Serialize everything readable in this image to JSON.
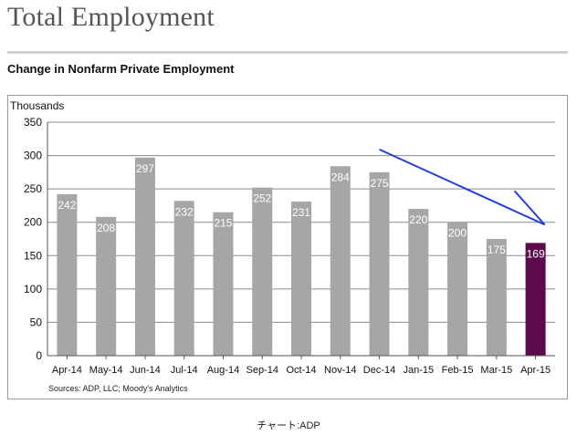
{
  "page": {
    "title": "Total Employment",
    "subtitle": "Change in Nonfarm Private Employment",
    "caption": "チャート:ADP"
  },
  "chart_data": {
    "type": "bar",
    "title": "Change in Nonfarm Private Employment",
    "ylabel": "Thousands",
    "xlabel": "",
    "source": "Sources: ADP, LLC; Moody's Analytics",
    "categories": [
      "Apr-14",
      "May-14",
      "Jun-14",
      "Jul-14",
      "Aug-14",
      "Sep-14",
      "Oct-14",
      "Nov-14",
      "Dec-14",
      "Jan-15",
      "Feb-15",
      "Mar-15",
      "Apr-15"
    ],
    "values": [
      242,
      208,
      297,
      232,
      215,
      252,
      231,
      284,
      275,
      220,
      200,
      175,
      169
    ],
    "data_labels": [
      "242",
      "208",
      "297",
      "232",
      "215",
      "252",
      "231",
      "284",
      "275",
      "220",
      "200",
      "175",
      "169"
    ],
    "ylim": [
      0,
      350
    ],
    "yticks": [
      0,
      50,
      100,
      150,
      200,
      250,
      300,
      350
    ],
    "ytick_labels": [
      "0",
      "50",
      "100",
      "150",
      "200",
      "250",
      "300",
      "350"
    ],
    "grid": true,
    "colors": {
      "bar": "#a6a6a6",
      "highlight": "#5c0a4a",
      "arrow": "#1f3fe0",
      "grid": "#8a8a8a",
      "label": "#ffffff"
    },
    "highlight_index": 12,
    "annotation": {
      "type": "downward trend arrow",
      "from_category": "Dec-14",
      "to_category": "Apr-15"
    }
  }
}
